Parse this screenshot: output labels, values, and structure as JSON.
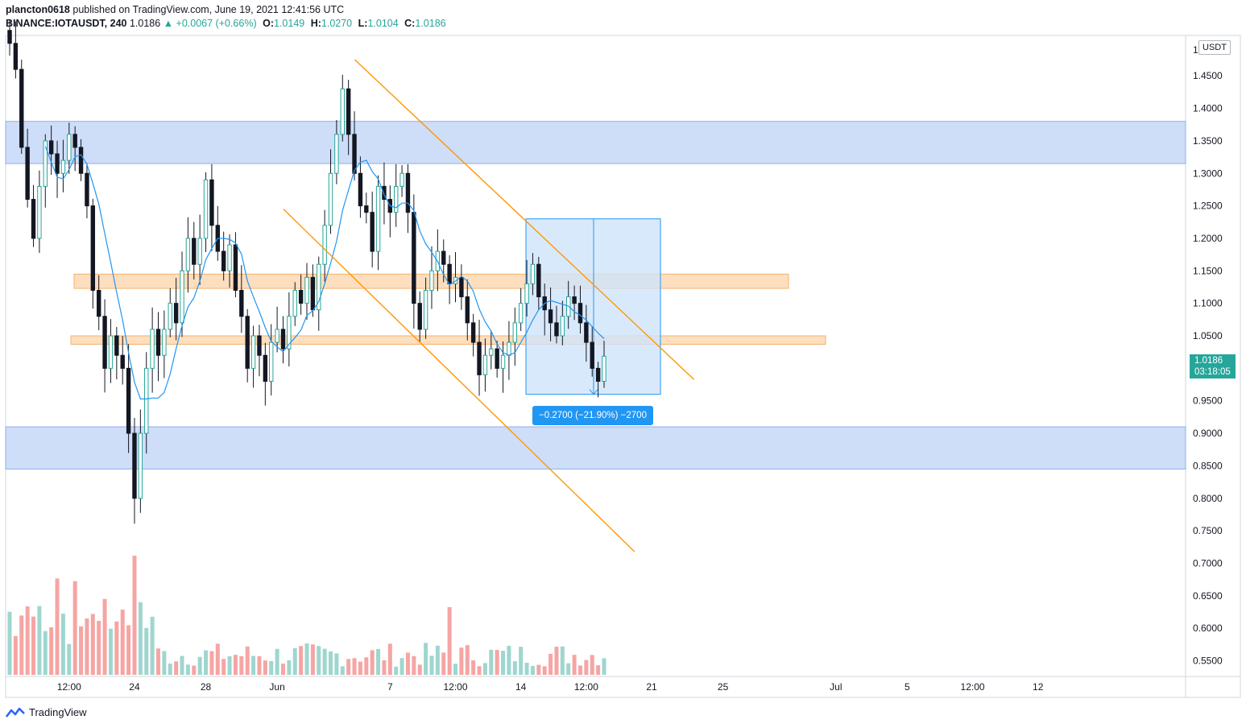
{
  "header": {
    "author": "plancton0618",
    "published_text": "published on TradingView.com, June 19, 2021 12:41:56 UTC",
    "symbol": "BINANCE:IOTAUSDT, 240",
    "last": "1.0186",
    "change": "▲ +0.0067 (+0.66%)",
    "open_label": "O:",
    "open": "1.0149",
    "high_label": "H:",
    "high": "1.0270",
    "low_label": "L:",
    "low": "1.0104",
    "close_label": "C:",
    "close": "1.0186"
  },
  "price_axis": {
    "unit": "USDT",
    "top_label": "1",
    "current_price": "1.0186",
    "countdown": "03:18:05"
  },
  "measure_label": "−0.2700 (−21.90%) −2700",
  "footer": {
    "brand": "TradingView",
    "logo_icon": "tradingview-logo-icon"
  },
  "colors": {
    "up": "#26a69a",
    "down": "#ef5350",
    "ma": "#2196f3",
    "zone_blue": "#b9cff5",
    "zone_orange": "#fcd3a9",
    "trend": "#ff9800"
  },
  "chart_data": {
    "type": "candlestick",
    "timeframe": "240",
    "ylim": [
      0.52,
      1.52
    ],
    "y_ticks": [
      0.55,
      0.6,
      0.65,
      0.7,
      0.75,
      0.8,
      0.85,
      0.9,
      0.95,
      1.0,
      1.05,
      1.1,
      1.15,
      1.2,
      1.25,
      1.3,
      1.35,
      1.4,
      1.45
    ],
    "x_ticks": [
      {
        "label": "12:00",
        "i": 10
      },
      {
        "label": "24",
        "i": 21
      },
      {
        "label": "28",
        "i": 33
      },
      {
        "label": "Jun",
        "i": 45
      },
      {
        "label": "7",
        "i": 64
      },
      {
        "label": "12:00",
        "i": 75
      },
      {
        "label": "14",
        "i": 86
      },
      {
        "label": "12:00",
        "i": 97
      },
      {
        "label": "21",
        "i": 108
      },
      {
        "label": "25",
        "i": 120
      },
      {
        "label": "Jul",
        "i": 139
      },
      {
        "label": "5",
        "i": 151
      },
      {
        "label": "12:00",
        "i": 162
      },
      {
        "label": "12",
        "i": 173
      }
    ],
    "closes": [
      1.5,
      1.46,
      1.34,
      1.26,
      1.2,
      1.28,
      1.35,
      1.33,
      1.3,
      1.32,
      1.36,
      1.34,
      1.3,
      1.25,
      1.12,
      1.08,
      1.0,
      1.05,
      1.02,
      1.0,
      0.9,
      0.8,
      0.9,
      1.0,
      1.06,
      1.02,
      1.06,
      1.1,
      1.07,
      1.15,
      1.2,
      1.16,
      1.2,
      1.29,
      1.22,
      1.18,
      1.15,
      1.19,
      1.12,
      1.08,
      1.0,
      1.05,
      1.02,
      0.98,
      1.04,
      1.06,
      1.03,
      1.08,
      1.12,
      1.1,
      1.14,
      1.09,
      1.16,
      1.22,
      1.3,
      1.36,
      1.43,
      1.36,
      1.3,
      1.25,
      1.24,
      1.18,
      1.28,
      1.26,
      1.24,
      1.28,
      1.3,
      1.24,
      1.1,
      1.06,
      1.12,
      1.15,
      1.18,
      1.16,
      1.13,
      1.14,
      1.11,
      1.07,
      1.04,
      0.99,
      1.02,
      1.03,
      1.0,
      1.02,
      1.04,
      1.07,
      1.1,
      1.13,
      1.16,
      1.11,
      1.09,
      1.07,
      1.05,
      1.08,
      1.11,
      1.1,
      1.07,
      1.04,
      1.0,
      0.98,
      1.0186
    ],
    "moving_average": "blue line (period not shown)",
    "zones": [
      {
        "kind": "blue",
        "from": 1.315,
        "to": 1.38
      },
      {
        "kind": "blue",
        "from": 0.845,
        "to": 0.91
      },
      {
        "kind": "orange",
        "from": 1.123,
        "to": 1.145
      },
      {
        "kind": "orange",
        "from": 1.037,
        "to": 1.05
      }
    ],
    "trendlines": [
      {
        "from": {
          "i": 59,
          "price": 1.475
        },
        "to": {
          "i": 107,
          "price": 1.02
        }
      },
      {
        "from": {
          "i": 47,
          "price": 1.245
        },
        "to": {
          "i": 97,
          "price": 0.755
        }
      }
    ],
    "measure": {
      "from_i": 76,
      "to_i": 97,
      "high": 1.23,
      "low": 0.96,
      "change": "−0.2700 (−21.90%) −2700"
    }
  }
}
